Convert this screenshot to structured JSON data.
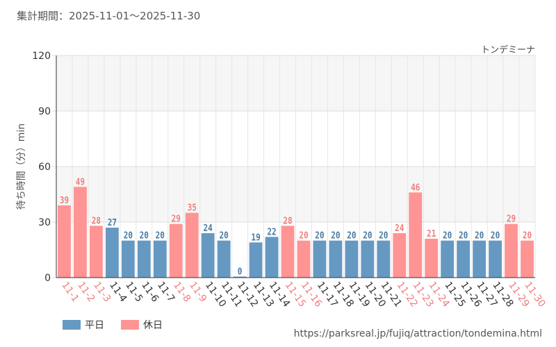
{
  "header": {
    "period_label": "集計期間：2025-11-01～2025-11-30",
    "attraction_name": "トンデミーナ"
  },
  "footer": {
    "url": "https://parksreal.jp/fujiq/attraction/tondemina.html"
  },
  "colors": {
    "weekday": "#6699c2",
    "holiday": "#ff9494",
    "weekday_label": "#4a79a5",
    "holiday_label": "#f07f7f"
  },
  "chart_data": {
    "type": "bar",
    "title": "",
    "xlabel": "",
    "ylabel": "待ち時間（分）min",
    "ylim": [
      0,
      120
    ],
    "yticks": [
      0,
      30,
      60,
      90,
      120
    ],
    "categories": [
      "11-1",
      "11-2",
      "11-3",
      "11-4",
      "11-5",
      "11-6",
      "11-7",
      "11-8",
      "11-9",
      "11-10",
      "11-11",
      "11-12",
      "11-13",
      "11-14",
      "11-15",
      "11-16",
      "11-17",
      "11-18",
      "11-19",
      "11-20",
      "11-21",
      "11-22",
      "11-23",
      "11-24",
      "11-25",
      "11-26",
      "11-27",
      "11-28",
      "11-29",
      "11-30"
    ],
    "values": [
      39,
      49,
      28,
      27,
      20,
      20,
      20,
      29,
      35,
      24,
      20,
      0,
      19,
      22,
      28,
      20,
      20,
      20,
      20,
      20,
      20,
      24,
      46,
      21,
      20,
      20,
      20,
      20,
      29,
      20
    ],
    "day_type": [
      "holiday",
      "holiday",
      "holiday",
      "weekday",
      "weekday",
      "weekday",
      "weekday",
      "holiday",
      "holiday",
      "weekday",
      "weekday",
      "weekday",
      "weekday",
      "weekday",
      "holiday",
      "holiday",
      "weekday",
      "weekday",
      "weekday",
      "weekday",
      "weekday",
      "holiday",
      "holiday",
      "holiday",
      "weekday",
      "weekday",
      "weekday",
      "weekday",
      "holiday",
      "holiday"
    ],
    "legend": [
      {
        "key": "weekday",
        "label": "平日"
      },
      {
        "key": "holiday",
        "label": "休日"
      }
    ],
    "legend_position": "bottom-left"
  }
}
